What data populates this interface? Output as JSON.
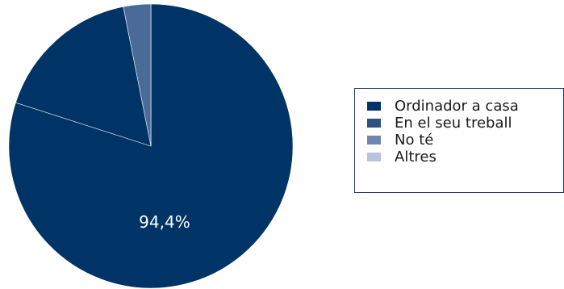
{
  "chart_data": {
    "type": "pie",
    "title": "",
    "slices": [
      {
        "label": "Ordinador a casa",
        "value": 94.4,
        "value_label": "94,4%",
        "color": "#003366"
      },
      {
        "label": "En el seu treball",
        "value": 0.0,
        "value_label": "",
        "color": "#2f4f7f"
      },
      {
        "label": "No té",
        "value": 5.6,
        "value_label": "",
        "color": "#4a6a98"
      },
      {
        "label": "Altres",
        "value": 0.0,
        "value_label": "",
        "color": "#b9c4dc"
      }
    ],
    "legend": {
      "position": "right",
      "items": [
        "Ordinador a casa",
        "En el seu treball",
        "No té",
        "Altres"
      ]
    }
  }
}
